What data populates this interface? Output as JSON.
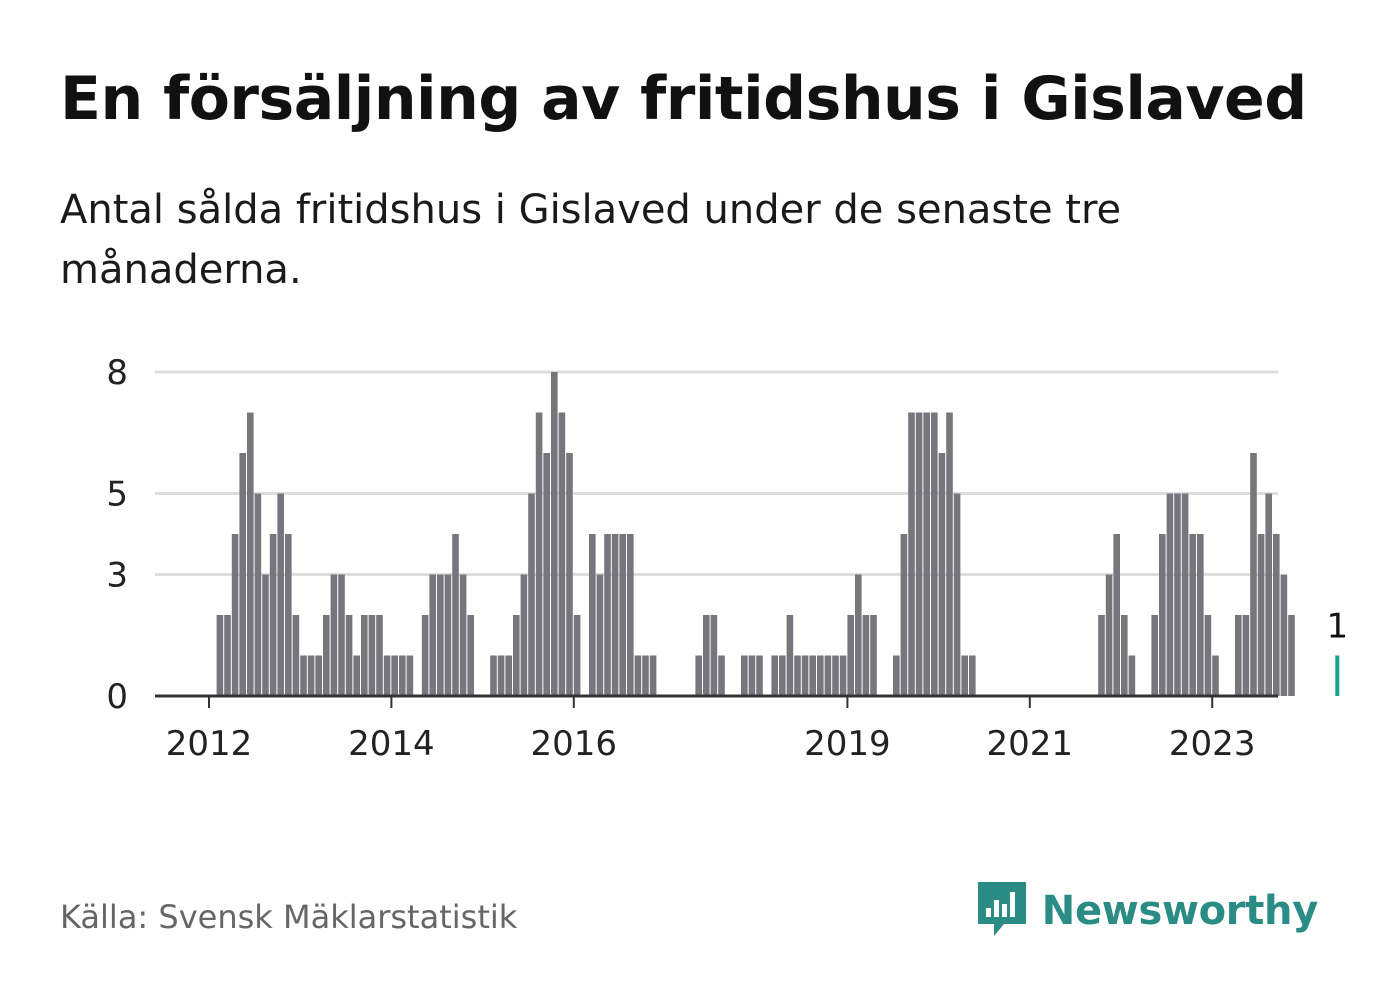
{
  "header": {
    "title": "En försäljning av fritidshus i Gislaved",
    "subtitle": "Antal sålda fritidshus i Gislaved under de senaste tre månaderna."
  },
  "footer": {
    "source": "Källa: Svensk Mäklarstatistik",
    "brand_name": "Newsworthy",
    "brand_icon": "bar-chart-speech-bubble-icon"
  },
  "colors": {
    "bar": "#77767c",
    "highlight": "#1a9e8f",
    "grid": "#dddddd",
    "axis": "#333333",
    "brand": "#2a8c85"
  },
  "chart_data": {
    "type": "bar",
    "title": "En försäljning av fritidshus i Gislaved",
    "xlabel": "",
    "ylabel": "",
    "ylim": [
      0,
      9
    ],
    "y_ticks": [
      0,
      3,
      5,
      8
    ],
    "x_ticks": [
      "2012",
      "2014",
      "2016",
      "2019",
      "2021",
      "2023"
    ],
    "grid": true,
    "highlight_label": "1",
    "first_month": "2012-01",
    "series": [
      {
        "name": "",
        "values": [
          0,
          2,
          2,
          4,
          6,
          7,
          5,
          3,
          4,
          5,
          4,
          2,
          1,
          1,
          1,
          2,
          3,
          3,
          2,
          1,
          2,
          2,
          2,
          1,
          1,
          1,
          1,
          0,
          2,
          3,
          3,
          3,
          4,
          3,
          2,
          0,
          0,
          1,
          1,
          1,
          2,
          3,
          5,
          7,
          6,
          8,
          7,
          6,
          2,
          0,
          4,
          3,
          4,
          4,
          4,
          4,
          1,
          1,
          1,
          0,
          0,
          0,
          0,
          0,
          1,
          2,
          2,
          1,
          0,
          0,
          1,
          1,
          1,
          0,
          1,
          1,
          2,
          1,
          1,
          1,
          1,
          1,
          1,
          1,
          2,
          3,
          2,
          2,
          0,
          0,
          1,
          4,
          7,
          7,
          7,
          7,
          6,
          7,
          5,
          1,
          1,
          0,
          0,
          0,
          0,
          0,
          0,
          0,
          0,
          0,
          0,
          0,
          0,
          0,
          0,
          0,
          0,
          2,
          3,
          4,
          2,
          1,
          0,
          0,
          2,
          4,
          5,
          5,
          5,
          4,
          4,
          2,
          1,
          0,
          0,
          2,
          2,
          6,
          4,
          5,
          4,
          3,
          2,
          0,
          0,
          0,
          0,
          0,
          1
        ]
      }
    ]
  }
}
